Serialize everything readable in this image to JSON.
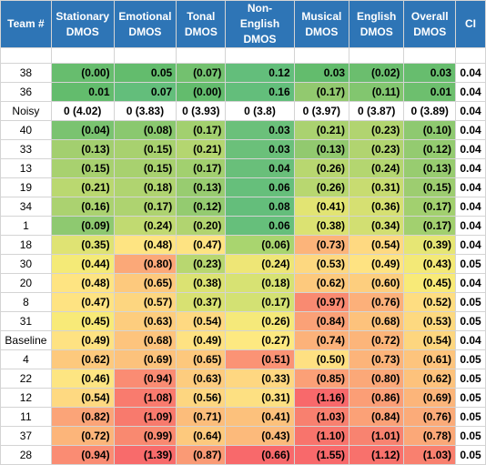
{
  "headers": [
    "Team #",
    "Stationary DMOS",
    "Emotional DMOS",
    "Tonal DMOS",
    "Non-English DMOS",
    "Musical DMOS",
    "English DMOS",
    "Overall DMOS",
    "CI"
  ],
  "rows": [
    {
      "team": "38",
      "values": [
        "(0.00)",
        "0.05",
        "(0.07)",
        "0.12",
        "0.03",
        "(0.02)",
        "0.03"
      ],
      "ci": "0.04",
      "colors": [
        "#67bd6e",
        "#63bc6d",
        "#73c16f",
        "#63be7b",
        "#63bc6d",
        "#6bbe6e",
        "#67bd6e"
      ]
    },
    {
      "team": "36",
      "values": [
        "0.01",
        "0.07",
        "(0.00)",
        "0.16",
        "(0.17)",
        "(0.11)",
        "0.01"
      ],
      "ci": "0.04",
      "colors": [
        "#63bc6d",
        "#63be7b",
        "#63bc6d",
        "#63be7b",
        "#92c96f",
        "#82c66f",
        "#6dbf6e"
      ]
    },
    {
      "team": "Noisy",
      "values": [
        "0 (4.02)",
        "0 (3.83)",
        "0 (3.93)",
        "0 (3.8)",
        "0 (3.97)",
        "0 (3.87)",
        "0 (3.89)"
      ],
      "ci": "0.04",
      "noisy": true,
      "colors": [
        "#ffffff",
        "#ffffff",
        "#ffffff",
        "#ffffff",
        "#ffffff",
        "#ffffff",
        "#ffffff"
      ]
    },
    {
      "team": "40",
      "values": [
        "(0.04)",
        "(0.08)",
        "(0.17)",
        "0.03",
        "(0.21)",
        "(0.23)",
        "(0.10)"
      ],
      "ci": "0.04",
      "colors": [
        "#7ac370",
        "#8ac86f",
        "#a2d06f",
        "#6bc07a",
        "#aad270",
        "#b1d470",
        "#8ec970"
      ]
    },
    {
      "team": "33",
      "values": [
        "(0.13)",
        "(0.15)",
        "(0.21)",
        "0.03",
        "(0.13)",
        "(0.23)",
        "(0.12)"
      ],
      "ci": "0.04",
      "colors": [
        "#a3cf6f",
        "#a8d16f",
        "#b4d670",
        "#6bc07a",
        "#92c96f",
        "#b1d470",
        "#94cb70"
      ]
    },
    {
      "team": "13",
      "values": [
        "(0.15)",
        "(0.15)",
        "(0.17)",
        "0.04",
        "(0.26)",
        "(0.24)",
        "(0.13)"
      ],
      "ci": "0.04",
      "colors": [
        "#a8d16f",
        "#a8d16f",
        "#a2d06f",
        "#69bf7a",
        "#b8d770",
        "#b4d670",
        "#98cc70"
      ]
    },
    {
      "team": "19",
      "values": [
        "(0.21)",
        "(0.18)",
        "(0.13)",
        "0.06",
        "(0.26)",
        "(0.31)",
        "(0.15)"
      ],
      "ci": "0.04",
      "colors": [
        "#bad870",
        "#b0d470",
        "#98cc70",
        "#66bf7b",
        "#b8d770",
        "#c8dc71",
        "#9dcd70"
      ]
    },
    {
      "team": "34",
      "values": [
        "(0.16)",
        "(0.17)",
        "(0.12)",
        "0.08",
        "(0.41)",
        "(0.36)",
        "(0.17)"
      ],
      "ci": "0.04",
      "colors": [
        "#abd270",
        "#aed370",
        "#94cb70",
        "#64be7b",
        "#e2e473",
        "#d6e072",
        "#a2d06f"
      ]
    },
    {
      "team": "1",
      "values": [
        "(0.09)",
        "(0.24)",
        "(0.20)",
        "0.06",
        "(0.38)",
        "(0.34)",
        "(0.17)"
      ],
      "ci": "0.04",
      "colors": [
        "#8ec970",
        "#c1da71",
        "#b1d470",
        "#66bf7b",
        "#dbe272",
        "#d2df72",
        "#a2d06f"
      ]
    },
    {
      "team": "18",
      "values": [
        "(0.35)",
        "(0.48)",
        "(0.47)",
        "(0.06)",
        "(0.73)",
        "(0.54)",
        "(0.39)"
      ],
      "ci": "0.04",
      "colors": [
        "#dfe373",
        "#fee482",
        "#fee382",
        "#a9d56f",
        "#fcb47a",
        "#fed981",
        "#e6e674"
      ]
    },
    {
      "team": "30",
      "values": [
        "(0.44)",
        "(0.80)",
        "(0.23)",
        "(0.24)",
        "(0.53)",
        "(0.49)",
        "(0.43)"
      ],
      "ci": "0.05",
      "colors": [
        "#f4ea77",
        "#fba878",
        "#b8d770",
        "#eee676",
        "#fdd880",
        "#fee382",
        "#f3e977"
      ]
    },
    {
      "team": "20",
      "values": [
        "(0.48)",
        "(0.65)",
        "(0.38)",
        "(0.18)",
        "(0.62)",
        "(0.60)",
        "(0.45)"
      ],
      "ci": "0.04",
      "colors": [
        "#fee482",
        "#fdc97d",
        "#dbe272",
        "#d7e273",
        "#fdc97d",
        "#fdce7e",
        "#f8ea78"
      ]
    },
    {
      "team": "8",
      "values": [
        "(0.47)",
        "(0.57)",
        "(0.37)",
        "(0.17)",
        "(0.97)",
        "(0.76)",
        "(0.52)"
      ],
      "ci": "0.05",
      "colors": [
        "#fee382",
        "#fdd680",
        "#d8e172",
        "#d3e173",
        "#f98a71",
        "#fcb07a",
        "#fedd81"
      ]
    },
    {
      "team": "31",
      "values": [
        "(0.45)",
        "(0.63)",
        "(0.54)",
        "(0.26)",
        "(0.84)",
        "(0.68)",
        "(0.53)"
      ],
      "ci": "0.05",
      "colors": [
        "#f8ea78",
        "#fdcd7e",
        "#fed981",
        "#f5e97a",
        "#fba177",
        "#fdc27c",
        "#fdd980"
      ]
    },
    {
      "team": "Baseline",
      "values": [
        "(0.49)",
        "(0.68)",
        "(0.49)",
        "(0.27)",
        "(0.74)",
        "(0.72)",
        "(0.54)"
      ],
      "ci": "0.04",
      "colors": [
        "#fee282",
        "#fdc47d",
        "#fee282",
        "#fde981",
        "#fcb27a",
        "#fcb57a",
        "#fdd67f"
      ]
    },
    {
      "team": "4",
      "values": [
        "(0.62)",
        "(0.69)",
        "(0.65)",
        "(0.51)",
        "(0.50)",
        "(0.73)",
        "(0.61)"
      ],
      "ci": "0.05",
      "colors": [
        "#fdc97d",
        "#fcc27c",
        "#fdc87d",
        "#fb9375",
        "#fee082",
        "#fcb47a",
        "#fdc47d"
      ]
    },
    {
      "team": "22",
      "values": [
        "(0.46)",
        "(0.94)",
        "(0.63)",
        "(0.33)",
        "(0.85)",
        "(0.80)",
        "(0.62)"
      ],
      "ci": "0.05",
      "colors": [
        "#fde582",
        "#fa8c73",
        "#fdcc7e",
        "#fed781",
        "#fba077",
        "#fba878",
        "#fdc27c"
      ]
    },
    {
      "team": "12",
      "values": [
        "(0.54)",
        "(1.08)",
        "(0.56)",
        "(0.31)",
        "(1.16)",
        "(0.86)",
        "(0.69)"
      ],
      "ci": "0.05",
      "colors": [
        "#fed981",
        "#f97b6e",
        "#fdd680",
        "#fde082",
        "#f8696b",
        "#fb9e76",
        "#fcb57a"
      ]
    },
    {
      "team": "11",
      "values": [
        "(0.82)",
        "(1.09)",
        "(0.71)",
        "(0.41)",
        "(1.03)",
        "(0.84)",
        "(0.76)"
      ],
      "ci": "0.05",
      "colors": [
        "#fba478",
        "#f87a6d",
        "#fcbd7b",
        "#fcc17c",
        "#f8806f",
        "#fba177",
        "#fbab79"
      ]
    },
    {
      "team": "37",
      "values": [
        "(0.72)",
        "(0.99)",
        "(0.64)",
        "(0.43)",
        "(1.10)",
        "(1.01)",
        "(0.78)"
      ],
      "ci": "0.05",
      "colors": [
        "#fcb57a",
        "#f98970",
        "#fdc97d",
        "#fcba7b",
        "#f8746c",
        "#f88370",
        "#fba878"
      ]
    },
    {
      "team": "28",
      "values": [
        "(0.94)",
        "(1.39)",
        "(0.87)",
        "(0.66)",
        "(1.55)",
        "(1.12)",
        "(1.03)"
      ],
      "ci": "0.05",
      "colors": [
        "#fa8c73",
        "#f86b6b",
        "#fa9a75",
        "#f8696b",
        "#f8696b",
        "#f8716c",
        "#f9806f"
      ]
    }
  ]
}
